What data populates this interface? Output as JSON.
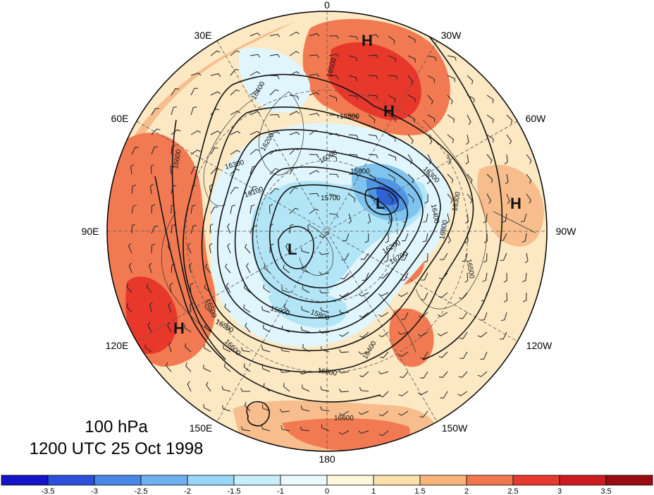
{
  "map": {
    "level_label": "100 hPa",
    "time_label": "1200 UTC 25 Oct 1998",
    "longitude_labels": [
      "0",
      "30W",
      "60W",
      "90W",
      "120W",
      "150W",
      "180",
      "150E",
      "120E",
      "90E",
      "60E",
      "30E"
    ],
    "pressure_centers": [
      {
        "type": "H",
        "label": "H"
      },
      {
        "type": "H",
        "label": "H"
      },
      {
        "type": "H",
        "label": "H"
      },
      {
        "type": "H",
        "label": "H"
      },
      {
        "type": "L",
        "label": "L"
      },
      {
        "type": "L",
        "label": "L"
      }
    ],
    "contour_labels": [
      "16500",
      "16500",
      "16400",
      "16200",
      "16300",
      "16000",
      "15800",
      "15700",
      "16100",
      "16300",
      "15900",
      "15800",
      "16400",
      "16500",
      "16600",
      "16600",
      "16500",
      "16200",
      "16400",
      "16500",
      "16600",
      "16700",
      "16800",
      "16500",
      "16300"
    ],
    "colors": {
      "warm_strong": "#e8382c",
      "warm_mid": "#f27a52",
      "warm_light": "#f7bd8c",
      "warm_pale": "#fce8c2",
      "neutral": "#fdf6e0",
      "cool_pale": "#e0f5fc",
      "cool_light": "#b2e6f7",
      "cool_mid": "#7fc4ee",
      "cool_strong": "#4f96e2",
      "cool_deep": "#2e62d8"
    }
  },
  "colorbar": {
    "tick_labels": [
      "-3.5",
      "-3",
      "-2.5",
      "-2",
      "-1.5",
      "-1",
      "0",
      "1",
      "1.5",
      "2",
      "2.5",
      "3",
      "3.5"
    ],
    "colors": [
      "#1414c8",
      "#2c50dc",
      "#4a86e6",
      "#6fb0f0",
      "#98d6f6",
      "#c6eefb",
      "#eafafd",
      "#fdf6da",
      "#fbe0ac",
      "#f7b57c",
      "#f1774f",
      "#e73a2e",
      "#cc1c22",
      "#9a0c14"
    ]
  }
}
